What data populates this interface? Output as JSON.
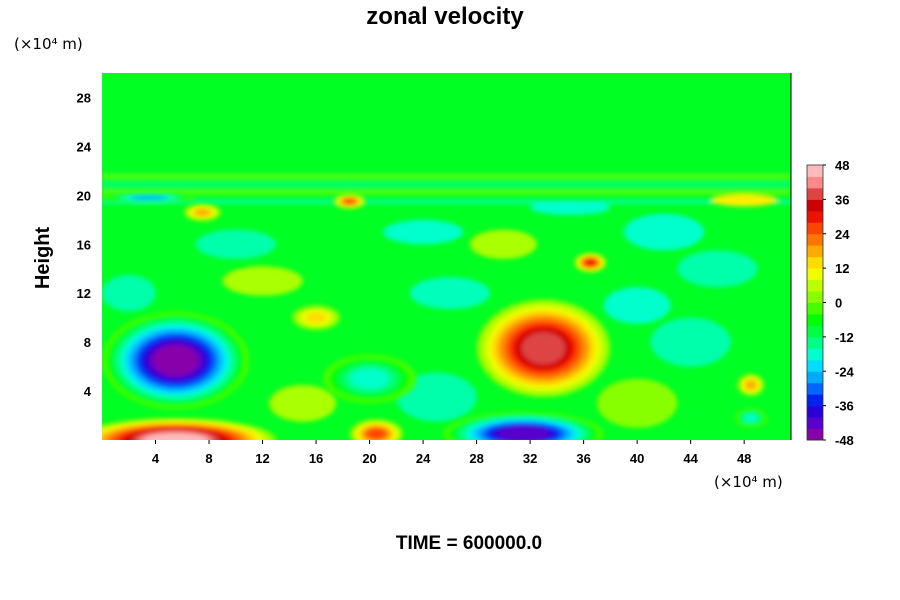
{
  "chart_data": {
    "type": "heatmap",
    "title": "zonal velocity",
    "xlabel": "",
    "ylabel": "Height",
    "x_unit": "(×10⁴ m)",
    "y_unit": "(×10⁴ m)",
    "xlim": [
      0,
      51.5
    ],
    "ylim": [
      0,
      30
    ],
    "x_ticks": [
      4,
      8,
      12,
      16,
      20,
      24,
      28,
      32,
      36,
      40,
      44,
      48
    ],
    "y_ticks": [
      4,
      8,
      12,
      16,
      20,
      24,
      28
    ],
    "x_tick_labels": [
      "4",
      "8",
      "12",
      "16",
      "20",
      "24",
      "28",
      "32",
      "36",
      "40",
      "44",
      "48"
    ],
    "y_tick_labels": [
      "4",
      "8",
      "12",
      "16",
      "20",
      "24",
      "28"
    ],
    "colorbar": {
      "min": -48,
      "max": 48,
      "step": 4,
      "tick_labels": [
        "48",
        "36",
        "24",
        "12",
        "0",
        "-12",
        "-24",
        "-36",
        "-48"
      ],
      "colors": [
        "#8800aa",
        "#5a00cc",
        "#2a00d8",
        "#0022ee",
        "#0066ff",
        "#00aaff",
        "#00ddff",
        "#00ffcc",
        "#00ff88",
        "#00ff44",
        "#00ff00",
        "#44ff00",
        "#88ff00",
        "#bbff00",
        "#eeff00",
        "#ffdd00",
        "#ffaa00",
        "#ff7700",
        "#ff4400",
        "#ee1100",
        "#cc0000",
        "#dd4444",
        "#ff8888",
        "#ffbbbb"
      ]
    },
    "features": [
      {
        "kind": "min",
        "x": 5.5,
        "y": 6.5,
        "value": -48,
        "rx": 5.5,
        "ry": 4.0
      },
      {
        "kind": "max",
        "x": 33.0,
        "y": 7.5,
        "value": 38,
        "rx": 5.0,
        "ry": 4.0
      },
      {
        "kind": "max",
        "x": 5.5,
        "y": 0.0,
        "value": 48,
        "rx": 7.5,
        "ry": 1.8
      },
      {
        "kind": "min",
        "x": 31.5,
        "y": 0.5,
        "value": -42,
        "rx": 6.0,
        "ry": 1.8
      },
      {
        "kind": "min",
        "x": 20.0,
        "y": 5.0,
        "value": -20,
        "rx": 3.5,
        "ry": 2.0
      },
      {
        "kind": "max",
        "x": 20.5,
        "y": 0.5,
        "value": 28,
        "rx": 2.0,
        "ry": 1.2
      },
      {
        "kind": "max",
        "x": 36.5,
        "y": 14.5,
        "value": 32,
        "rx": 1.2,
        "ry": 0.8
      },
      {
        "kind": "max",
        "x": 18.5,
        "y": 19.5,
        "value": 28,
        "rx": 1.2,
        "ry": 0.6
      },
      {
        "kind": "max",
        "x": 7.5,
        "y": 18.6,
        "value": 20,
        "rx": 1.4,
        "ry": 0.7
      },
      {
        "kind": "min",
        "x": 3.5,
        "y": 19.8,
        "value": -28,
        "rx": 3.5,
        "ry": 0.4
      },
      {
        "kind": "max",
        "x": 48.5,
        "y": 4.5,
        "value": 20,
        "rx": 1.0,
        "ry": 0.9
      },
      {
        "kind": "min",
        "x": 48.5,
        "y": 1.8,
        "value": -18,
        "rx": 1.2,
        "ry": 0.8
      },
      {
        "kind": "max",
        "x": 16.0,
        "y": 10.0,
        "value": 14,
        "rx": 1.8,
        "ry": 1.0
      }
    ]
  },
  "footer": {
    "time_label": "TIME = 600000.0"
  }
}
